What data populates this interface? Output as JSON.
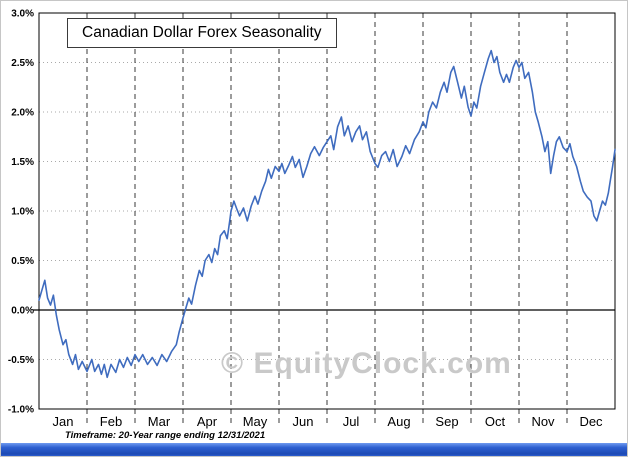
{
  "header": {
    "title": "Canadian Dollar Forex Seasonality"
  },
  "watermark": "© EquityClock.com",
  "footnote": "Timeframe: 20-Year range ending 12/31/2021",
  "chart_data": {
    "type": "line",
    "title": "Canadian Dollar Forex Seasonality",
    "xlabel": "",
    "ylabel": "",
    "x_months": [
      "Jan",
      "Feb",
      "Mar",
      "Apr",
      "May",
      "Jun",
      "Jul",
      "Aug",
      "Sep",
      "Oct",
      "Nov",
      "Dec"
    ],
    "ylim": [
      -1.0,
      3.0
    ],
    "ytick_step": 0.5,
    "ytick_labels": [
      "3.0%",
      "2.5%",
      "2.0%",
      "1.5%",
      "1.0%",
      "0.5%",
      "0.0%",
      "-0.5%",
      "-1.0%"
    ],
    "grid": true,
    "legend": "none",
    "line_color": "#3F6CBF",
    "points": [
      [
        0,
        0.1
      ],
      [
        0.06,
        0.2
      ],
      [
        0.12,
        0.3
      ],
      [
        0.18,
        0.12
      ],
      [
        0.24,
        0.05
      ],
      [
        0.3,
        0.15
      ],
      [
        0.36,
        -0.05
      ],
      [
        0.42,
        -0.2
      ],
      [
        0.5,
        -0.35
      ],
      [
        0.56,
        -0.3
      ],
      [
        0.62,
        -0.45
      ],
      [
        0.7,
        -0.55
      ],
      [
        0.76,
        -0.45
      ],
      [
        0.82,
        -0.6
      ],
      [
        0.9,
        -0.52
      ],
      [
        1,
        -0.62
      ],
      [
        1.1,
        -0.5
      ],
      [
        1.16,
        -0.62
      ],
      [
        1.24,
        -0.55
      ],
      [
        1.3,
        -0.65
      ],
      [
        1.36,
        -0.55
      ],
      [
        1.42,
        -0.68
      ],
      [
        1.5,
        -0.55
      ],
      [
        1.6,
        -0.63
      ],
      [
        1.68,
        -0.5
      ],
      [
        1.76,
        -0.58
      ],
      [
        1.84,
        -0.48
      ],
      [
        1.92,
        -0.56
      ],
      [
        2,
        -0.45
      ],
      [
        2.08,
        -0.52
      ],
      [
        2.16,
        -0.45
      ],
      [
        2.26,
        -0.55
      ],
      [
        2.36,
        -0.48
      ],
      [
        2.46,
        -0.56
      ],
      [
        2.56,
        -0.45
      ],
      [
        2.66,
        -0.52
      ],
      [
        2.76,
        -0.42
      ],
      [
        2.86,
        -0.35
      ],
      [
        2.92,
        -0.22
      ],
      [
        3,
        -0.08
      ],
      [
        3.06,
        0.02
      ],
      [
        3.12,
        0.12
      ],
      [
        3.18,
        0.06
      ],
      [
        3.26,
        0.25
      ],
      [
        3.34,
        0.4
      ],
      [
        3.4,
        0.34
      ],
      [
        3.46,
        0.5
      ],
      [
        3.54,
        0.56
      ],
      [
        3.6,
        0.48
      ],
      [
        3.66,
        0.62
      ],
      [
        3.72,
        0.56
      ],
      [
        3.78,
        0.75
      ],
      [
        3.86,
        0.8
      ],
      [
        3.92,
        0.72
      ],
      [
        3.98,
        0.92
      ],
      [
        4,
        1.0
      ],
      [
        4.06,
        1.1
      ],
      [
        4.12,
        1.02
      ],
      [
        4.18,
        0.95
      ],
      [
        4.26,
        1.03
      ],
      [
        4.34,
        0.9
      ],
      [
        4.42,
        1.05
      ],
      [
        4.5,
        1.15
      ],
      [
        4.56,
        1.07
      ],
      [
        4.64,
        1.2
      ],
      [
        4.72,
        1.3
      ],
      [
        4.78,
        1.42
      ],
      [
        4.84,
        1.33
      ],
      [
        4.92,
        1.45
      ],
      [
        5,
        1.4
      ],
      [
        5.06,
        1.48
      ],
      [
        5.12,
        1.38
      ],
      [
        5.2,
        1.46
      ],
      [
        5.28,
        1.55
      ],
      [
        5.34,
        1.44
      ],
      [
        5.42,
        1.52
      ],
      [
        5.5,
        1.34
      ],
      [
        5.58,
        1.45
      ],
      [
        5.66,
        1.58
      ],
      [
        5.74,
        1.65
      ],
      [
        5.84,
        1.56
      ],
      [
        5.92,
        1.64
      ],
      [
        6,
        1.7
      ],
      [
        6.08,
        1.76
      ],
      [
        6.14,
        1.62
      ],
      [
        6.22,
        1.85
      ],
      [
        6.3,
        1.95
      ],
      [
        6.36,
        1.76
      ],
      [
        6.44,
        1.86
      ],
      [
        6.52,
        1.7
      ],
      [
        6.6,
        1.8
      ],
      [
        6.68,
        1.86
      ],
      [
        6.74,
        1.72
      ],
      [
        6.82,
        1.8
      ],
      [
        6.9,
        1.6
      ],
      [
        7,
        1.48
      ],
      [
        7.06,
        1.44
      ],
      [
        7.14,
        1.56
      ],
      [
        7.22,
        1.6
      ],
      [
        7.3,
        1.5
      ],
      [
        7.38,
        1.62
      ],
      [
        7.46,
        1.45
      ],
      [
        7.56,
        1.55
      ],
      [
        7.64,
        1.66
      ],
      [
        7.72,
        1.58
      ],
      [
        7.82,
        1.72
      ],
      [
        7.92,
        1.8
      ],
      [
        8,
        1.9
      ],
      [
        8.06,
        1.84
      ],
      [
        8.12,
        2.0
      ],
      [
        8.2,
        2.1
      ],
      [
        8.28,
        2.04
      ],
      [
        8.36,
        2.2
      ],
      [
        8.44,
        2.3
      ],
      [
        8.5,
        2.2
      ],
      [
        8.58,
        2.4
      ],
      [
        8.64,
        2.46
      ],
      [
        8.72,
        2.3
      ],
      [
        8.8,
        2.14
      ],
      [
        8.86,
        2.26
      ],
      [
        8.94,
        2.05
      ],
      [
        9,
        1.96
      ],
      [
        9.06,
        2.1
      ],
      [
        9.12,
        2.04
      ],
      [
        9.2,
        2.26
      ],
      [
        9.28,
        2.4
      ],
      [
        9.36,
        2.54
      ],
      [
        9.42,
        2.62
      ],
      [
        9.48,
        2.5
      ],
      [
        9.54,
        2.56
      ],
      [
        9.6,
        2.4
      ],
      [
        9.68,
        2.3
      ],
      [
        9.74,
        2.38
      ],
      [
        9.8,
        2.3
      ],
      [
        9.88,
        2.45
      ],
      [
        9.94,
        2.52
      ],
      [
        10,
        2.45
      ],
      [
        10.06,
        2.5
      ],
      [
        10.12,
        2.34
      ],
      [
        10.2,
        2.4
      ],
      [
        10.28,
        2.2
      ],
      [
        10.34,
        2.0
      ],
      [
        10.4,
        1.9
      ],
      [
        10.48,
        1.75
      ],
      [
        10.54,
        1.6
      ],
      [
        10.6,
        1.7
      ],
      [
        10.66,
        1.38
      ],
      [
        10.72,
        1.56
      ],
      [
        10.78,
        1.7
      ],
      [
        10.84,
        1.75
      ],
      [
        10.92,
        1.64
      ],
      [
        11,
        1.6
      ],
      [
        11.06,
        1.68
      ],
      [
        11.12,
        1.55
      ],
      [
        11.2,
        1.45
      ],
      [
        11.28,
        1.3
      ],
      [
        11.34,
        1.2
      ],
      [
        11.42,
        1.14
      ],
      [
        11.5,
        1.1
      ],
      [
        11.56,
        0.95
      ],
      [
        11.62,
        0.9
      ],
      [
        11.68,
        1.0
      ],
      [
        11.74,
        1.1
      ],
      [
        11.8,
        1.06
      ],
      [
        11.86,
        1.18
      ],
      [
        11.9,
        1.3
      ],
      [
        11.95,
        1.45
      ],
      [
        12,
        1.62
      ]
    ]
  }
}
